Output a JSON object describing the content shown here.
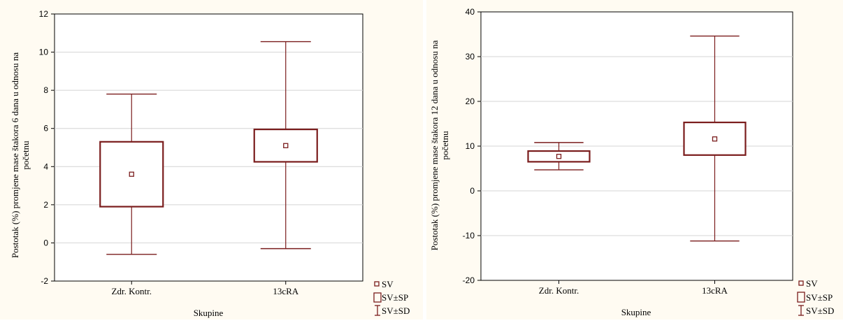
{
  "chart_data": [
    {
      "type": "box",
      "categories": [
        "Zdr. Kontr.",
        "13cRA"
      ],
      "xlabel": "Skupine",
      "ylabel_lines": [
        "Postotak (%) promjene mase štakora 6 dana u odnosu na",
        "početnu"
      ],
      "ylim": [
        -2,
        12
      ],
      "yticks": [
        "-2",
        "0",
        "2",
        "4",
        "6",
        "8",
        "10",
        "12"
      ],
      "grid": true,
      "legend_position": "bottom-right",
      "legend": [
        "SV",
        "SV±SP",
        "SV±SD"
      ],
      "boxes": [
        {
          "category": "Zdr. Kontr.",
          "mean": 3.6,
          "mean_minus_se": 1.9,
          "mean_plus_se": 5.3,
          "mean_minus_sd": -0.6,
          "mean_plus_sd": 7.8
        },
        {
          "category": "13cRA",
          "mean": 5.1,
          "mean_minus_se": 4.25,
          "mean_plus_se": 5.95,
          "mean_minus_sd": -0.3,
          "mean_plus_sd": 10.55
        }
      ],
      "colors": {
        "box": "#7a1c1c"
      }
    },
    {
      "type": "box",
      "categories": [
        "Zdr. Kontr.",
        "13cRA"
      ],
      "xlabel": "Skupine",
      "ylabel_lines": [
        "Postotak (%) promjene mase štakora 12 dana u odnosu na",
        "početnu"
      ],
      "ylim": [
        -20,
        40
      ],
      "yticks": [
        "-20",
        "-10",
        "0",
        "10",
        "20",
        "30",
        "40"
      ],
      "grid": true,
      "legend_position": "bottom-right",
      "legend": [
        "SV",
        "SV±SP",
        "SV±SD"
      ],
      "boxes": [
        {
          "category": "Zdr. Kontr.",
          "mean": 7.7,
          "mean_minus_se": 6.5,
          "mean_plus_se": 8.9,
          "mean_minus_sd": 4.7,
          "mean_plus_sd": 10.8
        },
        {
          "category": "13cRA",
          "mean": 11.6,
          "mean_minus_se": 8.0,
          "mean_plus_se": 15.3,
          "mean_minus_sd": -11.2,
          "mean_plus_sd": 34.6
        }
      ],
      "colors": {
        "box": "#7a1c1c"
      }
    }
  ]
}
